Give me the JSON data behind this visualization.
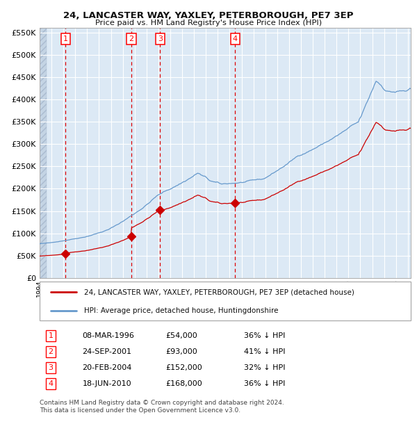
{
  "title1": "24, LANCASTER WAY, YAXLEY, PETERBOROUGH, PE7 3EP",
  "title2": "Price paid vs. HM Land Registry's House Price Index (HPI)",
  "background_color": "#dce9f5",
  "plot_bg": "#dce9f5",
  "red_line_color": "#cc0000",
  "blue_line_color": "#6699cc",
  "grid_color": "#ffffff",
  "sale_dates": [
    "1996-03-08",
    "2001-09-24",
    "2004-02-20",
    "2010-06-18"
  ],
  "sale_prices": [
    54000,
    93000,
    152000,
    168000
  ],
  "sale_labels": [
    "1",
    "2",
    "3",
    "4"
  ],
  "legend_red": "24, LANCASTER WAY, YAXLEY, PETERBOROUGH, PE7 3EP (detached house)",
  "legend_blue": "HPI: Average price, detached house, Huntingdonshire",
  "table_rows": [
    [
      "1",
      "08-MAR-1996",
      "£54,000",
      "36% ↓ HPI"
    ],
    [
      "2",
      "24-SEP-2001",
      "£93,000",
      "41% ↓ HPI"
    ],
    [
      "3",
      "20-FEB-2004",
      "£152,000",
      "32% ↓ HPI"
    ],
    [
      "4",
      "18-JUN-2010",
      "£168,000",
      "36% ↓ HPI"
    ]
  ],
  "footer": "Contains HM Land Registry data © Crown copyright and database right 2024.\nThis data is licensed under the Open Government Licence v3.0.",
  "yticks": [
    0,
    50000,
    100000,
    150000,
    200000,
    250000,
    300000,
    350000,
    400000,
    450000,
    500000,
    550000
  ],
  "ytick_labels": [
    "£0",
    "£50K",
    "£100K",
    "£150K",
    "£200K",
    "£250K",
    "£300K",
    "£350K",
    "£400K",
    "£450K",
    "£500K",
    "£550K"
  ]
}
